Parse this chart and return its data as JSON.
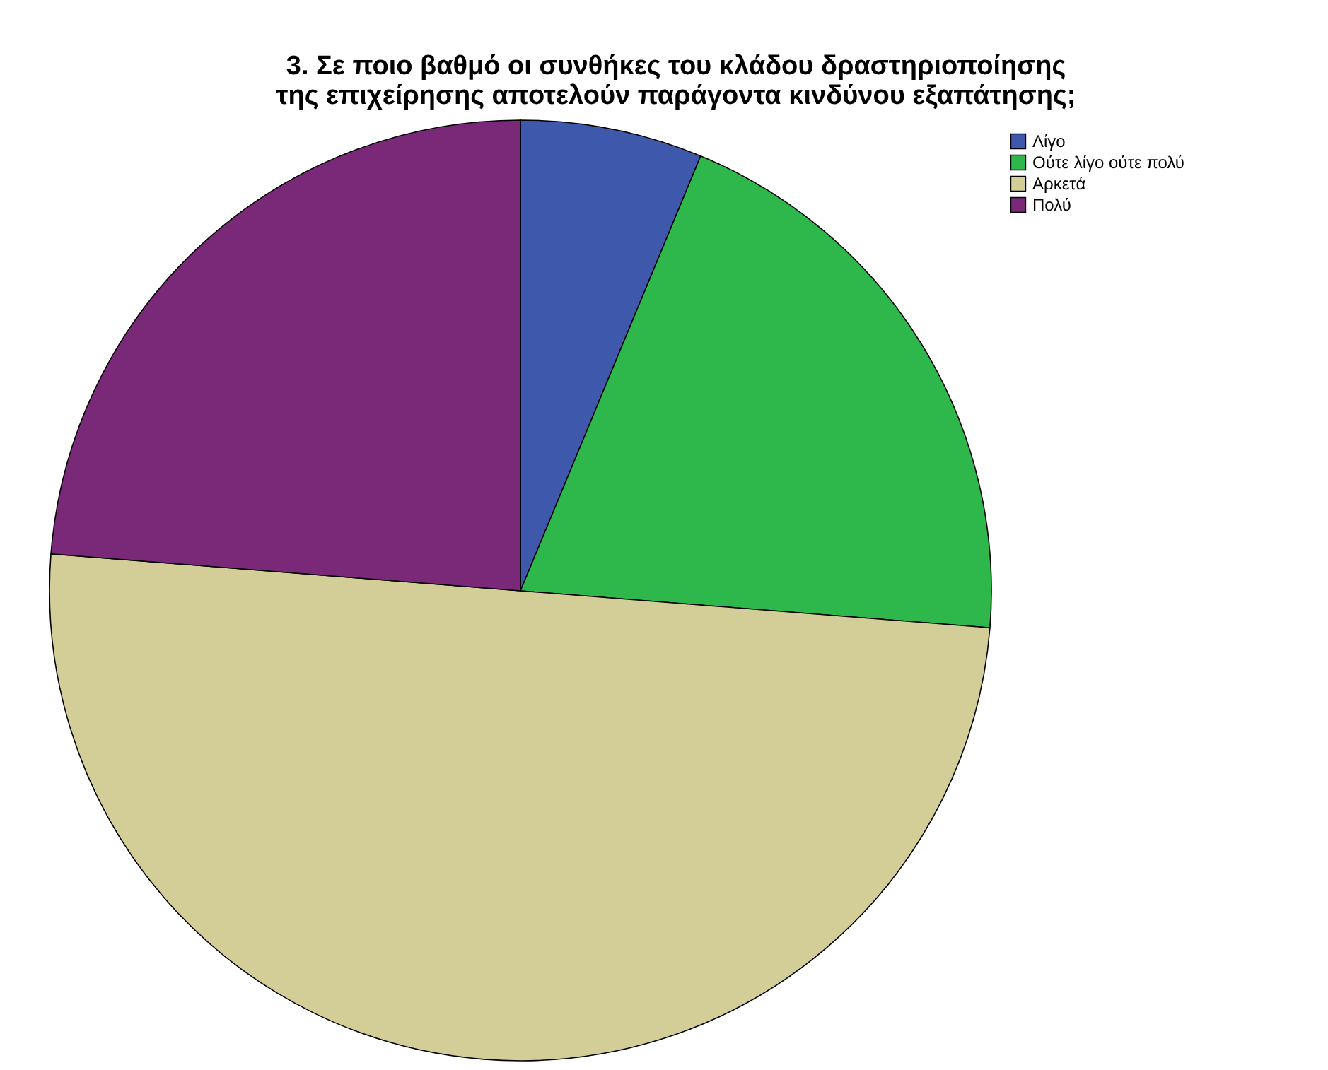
{
  "chart_data": {
    "type": "pie",
    "title": "3. Σε ποιο βαθμό οι συνθήκες του κλάδου δραστηριοποίησης της επιχείρησης αποτελούν παράγοντα κινδύνου εξαπάτησης;",
    "categories": [
      "Λίγο",
      "Ούτε λίγο ούτε πολύ",
      "Αρκετά",
      "Πολύ"
    ],
    "values": [
      6.25,
      20,
      50,
      23.75
    ],
    "colors": [
      "#3e58ac",
      "#2eb84b",
      "#d3ce97",
      "#7a2878"
    ],
    "legend": "top right"
  }
}
